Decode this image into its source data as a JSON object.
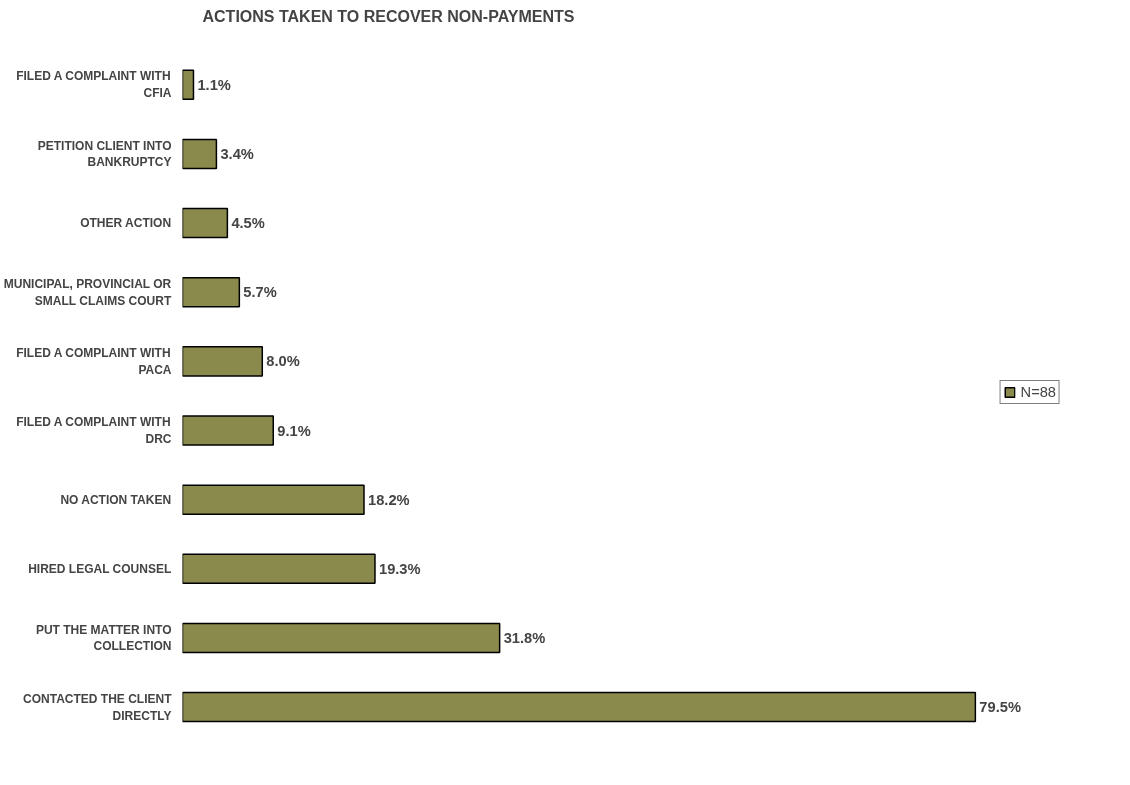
{
  "chart_data": {
    "type": "bar",
    "orientation": "horizontal",
    "title": "ACTIONS TAKEN TO RECOVER NON-PAYMENTS",
    "categories": [
      "FILED A COMPLAINT WITH CFIA",
      "PETITION CLIENT INTO BANKRUPTCY",
      "OTHER ACTION",
      "MUNICIPAL, PROVINCIAL OR SMALL CLAIMS COURT",
      "FILED A COMPLAINT WITH PACA",
      "FILED A COMPLAINT WITH DRC",
      "NO ACTION TAKEN",
      "HIRED LEGAL COUNSEL",
      "PUT THE MATTER INTO COLLECTION",
      "CONTACTED THE CLIENT DIRECTLY"
    ],
    "series": [
      {
        "name": "N=88",
        "color": "#8a8a4c",
        "values": [
          1.1,
          3.4,
          4.5,
          5.7,
          8.0,
          9.1,
          18.2,
          19.3,
          31.8,
          79.5
        ],
        "value_labels": [
          "1.1%",
          "3.4%",
          "4.5%",
          "5.7%",
          "8.0%",
          "9.1%",
          "18.2%",
          "19.3%",
          "31.8%",
          "79.5%"
        ]
      }
    ],
    "legend": "right",
    "grid": false
  }
}
